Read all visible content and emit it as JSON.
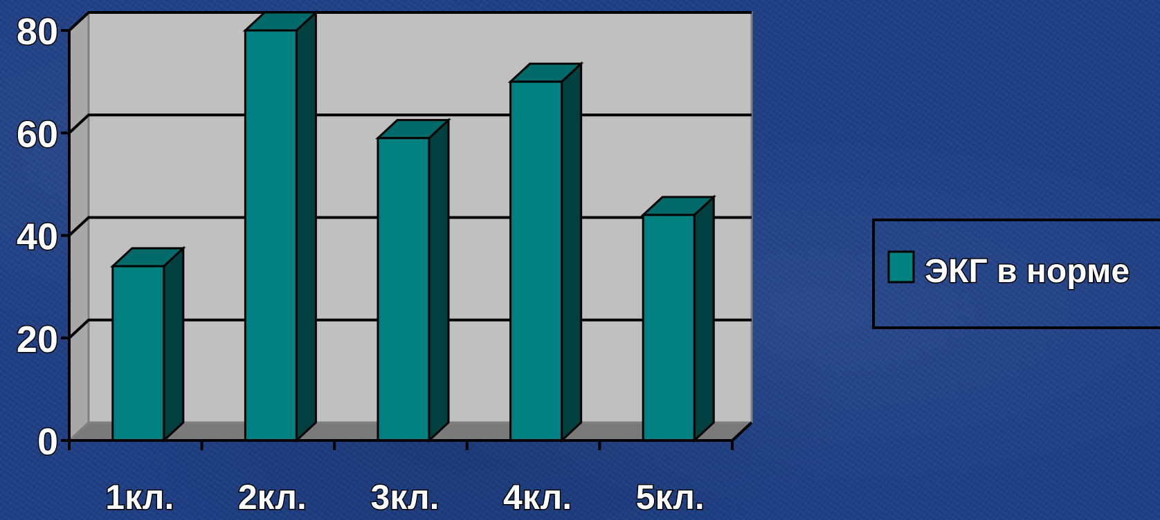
{
  "chart_data": {
    "type": "bar",
    "categories": [
      "1кл.",
      "2кл.",
      "3кл.",
      "4кл.",
      "5кл."
    ],
    "series": [
      {
        "name": "ЭКГ в норме",
        "values": [
          34,
          80,
          59,
          70,
          44
        ],
        "color": "#008080"
      }
    ],
    "ylim": [
      0,
      80
    ],
    "yticks": [
      "0",
      "20",
      "40",
      "60",
      "80"
    ],
    "grid": true,
    "legend_position": "right",
    "colors": {
      "background": "#1e3f86",
      "plot_wall": "#c0c0c0",
      "floor": "#7a7a7a",
      "bar_front": "#008080",
      "bar_side": "#004040",
      "bar_top": "#006a6a"
    }
  }
}
